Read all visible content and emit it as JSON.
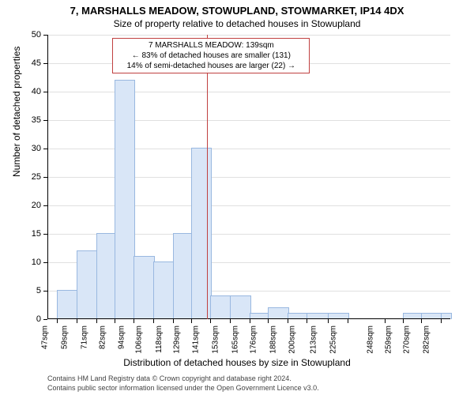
{
  "header": {
    "title": "7, MARSHALLS MEADOW, STOWUPLAND, STOWMARKET, IP14 4DX",
    "subtitle": "Size of property relative to detached houses in Stowupland"
  },
  "chart": {
    "type": "histogram",
    "ylabel": "Number of detached properties",
    "xlabel": "Distribution of detached houses by size in Stowupland",
    "ylim": [
      0,
      50
    ],
    "ytick_step": 5,
    "x_ticks": [
      "47sqm",
      "59sqm",
      "71sqm",
      "82sqm",
      "94sqm",
      "106sqm",
      "118sqm",
      "129sqm",
      "141sqm",
      "153sqm",
      "165sqm",
      "176sqm",
      "188sqm",
      "200sqm",
      "213sqm",
      "225sqm",
      "248sqm",
      "259sqm",
      "270sqm",
      "282sqm"
    ],
    "x_tick_positions": [
      47,
      59,
      71,
      82,
      94,
      106,
      118,
      129,
      141,
      153,
      165,
      176,
      188,
      200,
      213,
      225,
      248,
      259,
      270,
      282
    ],
    "x_range": [
      41,
      288
    ],
    "bars": [
      {
        "x": 47,
        "w": 12,
        "v": 5
      },
      {
        "x": 59,
        "w": 12,
        "v": 12
      },
      {
        "x": 71,
        "w": 11,
        "v": 15
      },
      {
        "x": 82,
        "w": 12,
        "v": 42
      },
      {
        "x": 94,
        "w": 12,
        "v": 11
      },
      {
        "x": 106,
        "w": 12,
        "v": 10
      },
      {
        "x": 118,
        "w": 11,
        "v": 15
      },
      {
        "x": 129,
        "w": 12,
        "v": 30
      },
      {
        "x": 141,
        "w": 12,
        "v": 4
      },
      {
        "x": 153,
        "w": 12,
        "v": 4
      },
      {
        "x": 165,
        "w": 11,
        "v": 1
      },
      {
        "x": 176,
        "w": 12,
        "v": 2
      },
      {
        "x": 188,
        "w": 12,
        "v": 1
      },
      {
        "x": 200,
        "w": 13,
        "v": 1
      },
      {
        "x": 213,
        "w": 12,
        "v": 1
      },
      {
        "x": 259,
        "w": 11,
        "v": 1
      },
      {
        "x": 270,
        "w": 12,
        "v": 1
      },
      {
        "x": 282,
        "w": 6,
        "v": 1
      }
    ],
    "bar_color": "#d9e6f7",
    "bar_border": "#99b8e0",
    "background_color": "#ffffff",
    "grid_color": "#e0e0e0",
    "marker_x": 139,
    "marker_color": "#c04040",
    "annotation": {
      "line1": "7 MARSHALLS MEADOW: 139sqm",
      "line2": "← 83% of detached houses are smaller (131)",
      "line3": "14% of semi-detached houses are larger (22) →",
      "border_color": "#c04040"
    }
  },
  "footer": {
    "line1": "Contains HM Land Registry data © Crown copyright and database right 2024.",
    "line2": "Contains public sector information licensed under the Open Government Licence v3.0."
  }
}
